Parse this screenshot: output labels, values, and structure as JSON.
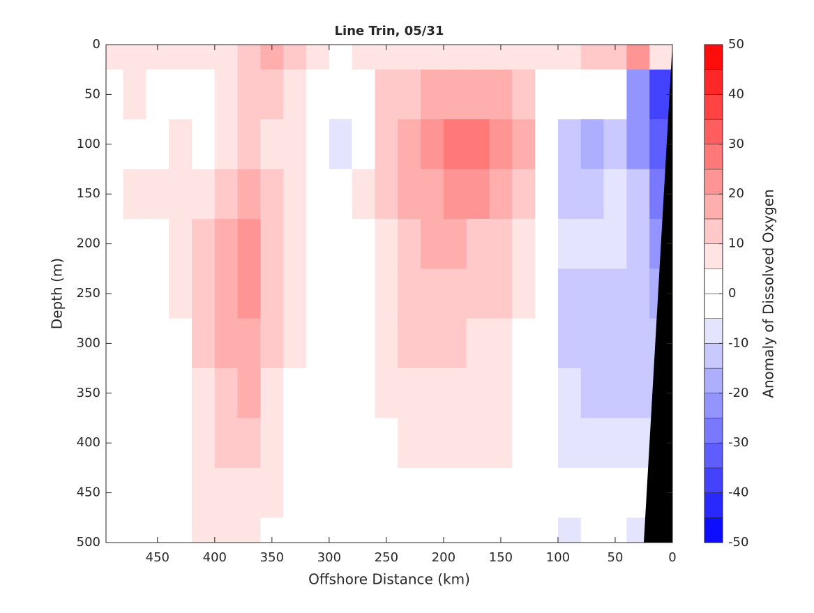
{
  "chart_data": {
    "type": "contourf",
    "title": "Line Trin, 05/31",
    "xlabel": "Offshore Distance (km)",
    "ylabel": "Depth (m)",
    "colorbar_label": "Anomaly of Dissolved Oxygen",
    "xlim": [
      495,
      0
    ],
    "ylim": [
      0,
      500
    ],
    "xticks": [
      450,
      400,
      350,
      300,
      250,
      200,
      150,
      100,
      50,
      0
    ],
    "yticks": [
      0,
      50,
      100,
      150,
      200,
      250,
      300,
      350,
      400,
      450,
      500
    ],
    "clim": [
      -50,
      50
    ],
    "cticks": [
      -50,
      -40,
      -30,
      -20,
      -10,
      0,
      10,
      20,
      30,
      40,
      50
    ],
    "levels": [
      -50,
      -45,
      -40,
      -35,
      -30,
      -25,
      -20,
      -15,
      -10,
      -5,
      0,
      5,
      10,
      15,
      20,
      25,
      30,
      35,
      40,
      45,
      50
    ],
    "color_low": "#0000ff",
    "color_mid": "#ffffff",
    "color_high": "#ff0000",
    "x": [
      490,
      470,
      450,
      430,
      410,
      390,
      370,
      350,
      330,
      310,
      290,
      270,
      250,
      230,
      210,
      190,
      170,
      150,
      130,
      110,
      90,
      70,
      50,
      30,
      10
    ],
    "y": [
      0,
      50,
      100,
      150,
      200,
      250,
      300,
      350,
      400,
      450,
      500
    ],
    "z": [
      [
        7,
        7,
        7,
        7,
        8,
        7,
        12,
        15,
        12,
        7,
        0,
        7,
        8,
        8,
        8,
        8,
        8,
        8,
        7,
        6,
        8,
        10,
        12,
        20,
        5
      ],
      [
        -3,
        7,
        2,
        3,
        3,
        8,
        12,
        13,
        8,
        3,
        0,
        3,
        10,
        12,
        15,
        17,
        17,
        15,
        12,
        3,
        0,
        -3,
        -5,
        -25,
        -40
      ],
      [
        0,
        0,
        2,
        7,
        3,
        8,
        10,
        8,
        7,
        2,
        -6,
        3,
        12,
        17,
        20,
        27,
        27,
        22,
        15,
        2,
        -12,
        -18,
        -15,
        -22,
        -35
      ],
      [
        0,
        5,
        7,
        8,
        8,
        10,
        15,
        10,
        7,
        0,
        0,
        6,
        10,
        15,
        17,
        20,
        20,
        17,
        12,
        0,
        -12,
        -15,
        -8,
        -15,
        -30
      ],
      [
        0,
        -3,
        3,
        8,
        12,
        15,
        22,
        14,
        8,
        0,
        0,
        3,
        8,
        12,
        15,
        15,
        13,
        12,
        8,
        0,
        -10,
        -10,
        -10,
        -15,
        -25
      ],
      [
        0,
        0,
        2,
        7,
        12,
        15,
        20,
        12,
        7,
        0,
        0,
        2,
        7,
        12,
        12,
        13,
        12,
        10,
        7,
        0,
        -12,
        -12,
        -12,
        -15,
        -20
      ],
      [
        0,
        0,
        0,
        3,
        10,
        15,
        18,
        10,
        6,
        0,
        0,
        0,
        7,
        10,
        12,
        10,
        8,
        7,
        3,
        0,
        -12,
        -12,
        -12,
        -15,
        -15
      ],
      [
        0,
        0,
        0,
        0,
        8,
        14,
        15,
        8,
        3,
        0,
        0,
        0,
        6,
        7,
        7,
        7,
        7,
        7,
        3,
        0,
        -10,
        -12,
        -12,
        -12,
        -12
      ],
      [
        0,
        0,
        0,
        0,
        7,
        12,
        12,
        7,
        2,
        0,
        0,
        0,
        3,
        7,
        7,
        7,
        7,
        7,
        3,
        0,
        -6,
        -7,
        -8,
        -10,
        -10
      ],
      [
        0,
        0,
        0,
        0,
        7,
        8,
        8,
        6,
        0,
        0,
        0,
        0,
        2,
        3,
        2,
        2,
        3,
        3,
        0,
        0,
        0,
        0,
        0,
        -3,
        -3
      ],
      [
        0,
        0,
        0,
        0,
        7,
        7,
        5,
        2,
        0,
        0,
        0,
        0,
        0,
        0,
        0,
        0,
        0,
        0,
        0,
        0,
        -6,
        -3,
        0,
        -6,
        -6
      ]
    ],
    "bathymetry": {
      "x": [
        0,
        0,
        25
      ],
      "y": [
        0,
        500,
        500
      ],
      "color": "#000000"
    }
  }
}
